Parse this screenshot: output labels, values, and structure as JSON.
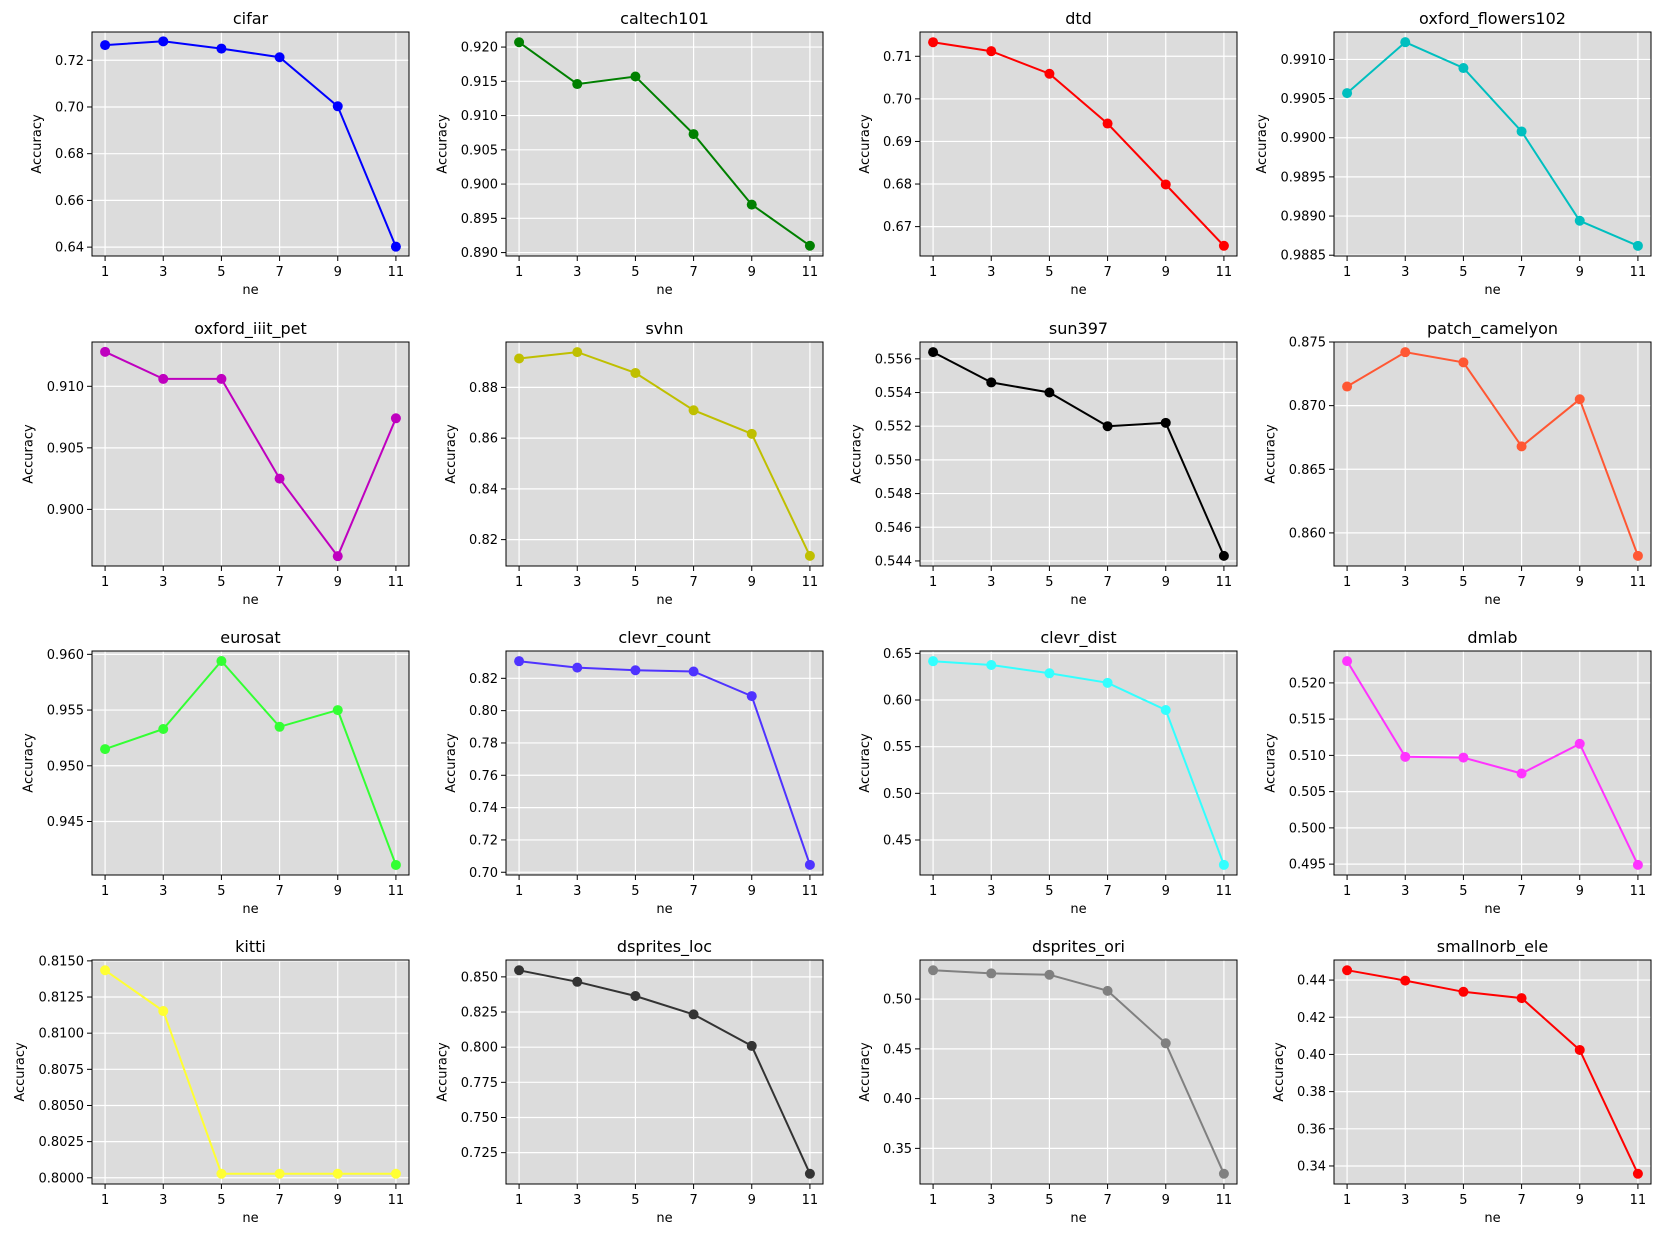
{
  "chart_data": [
    {
      "type": "line",
      "title": "cifar",
      "xlabel": "ne",
      "ylabel": "Accuracy",
      "color": "#0000ff",
      "x": [
        1,
        3,
        5,
        7,
        9,
        11
      ],
      "y": [
        0.7265,
        0.7281,
        0.725,
        0.7213,
        0.7003,
        0.6402
      ],
      "ylim": [
        0.6362,
        0.7321
      ],
      "yticks": [
        0.64,
        0.66,
        0.68,
        0.7,
        0.72
      ],
      "ytick_labels": [
        "0.64",
        "0.66",
        "0.68",
        "0.70",
        "0.72"
      ],
      "grid": true
    },
    {
      "type": "line",
      "title": "caltech101",
      "xlabel": "ne",
      "ylabel": "Accuracy",
      "color": "#008000",
      "x": [
        1,
        3,
        5,
        7,
        9,
        11
      ],
      "y": [
        0.9207,
        0.9146,
        0.9157,
        0.9073,
        0.897,
        0.891
      ],
      "ylim": [
        0.8895,
        0.9222
      ],
      "yticks": [
        0.89,
        0.895,
        0.9,
        0.905,
        0.91,
        0.915,
        0.92
      ],
      "ytick_labels": [
        "0.890",
        "0.895",
        "0.900",
        "0.905",
        "0.910",
        "0.915",
        "0.920"
      ],
      "grid": true
    },
    {
      "type": "line",
      "title": "dtd",
      "xlabel": "ne",
      "ylabel": "Accuracy",
      "color": "#ff0000",
      "x": [
        1,
        3,
        5,
        7,
        9,
        11
      ],
      "y": [
        0.7133,
        0.7112,
        0.7059,
        0.6942,
        0.6799,
        0.6655
      ],
      "ylim": [
        0.6631,
        0.7157
      ],
      "yticks": [
        0.67,
        0.68,
        0.69,
        0.7,
        0.71
      ],
      "ytick_labels": [
        "0.67",
        "0.68",
        "0.69",
        "0.70",
        "0.71"
      ],
      "grid": true
    },
    {
      "type": "line",
      "title": "oxford_flowers102",
      "xlabel": "ne",
      "ylabel": "Accuracy",
      "color": "#00bfbf",
      "x": [
        1,
        3,
        5,
        7,
        9,
        11
      ],
      "y": [
        0.99057,
        0.99122,
        0.99089,
        0.99008,
        0.98894,
        0.98862
      ],
      "ylim": [
        0.98849,
        0.99135
      ],
      "yticks": [
        0.9885,
        0.989,
        0.9895,
        0.99,
        0.9905,
        0.991
      ],
      "ytick_labels": [
        "0.9885",
        "0.9890",
        "0.9895",
        "0.9900",
        "0.9905",
        "0.9910"
      ],
      "grid": true
    },
    {
      "type": "line",
      "title": "oxford_iiit_pet",
      "xlabel": "ne",
      "ylabel": "Accuracy",
      "color": "#bf00bf",
      "x": [
        1,
        3,
        5,
        7,
        9,
        11
      ],
      "y": [
        0.9128,
        0.9106,
        0.9106,
        0.9025,
        0.8962,
        0.9074
      ],
      "ylim": [
        0.8954,
        0.9136
      ],
      "yticks": [
        0.9,
        0.905,
        0.91
      ],
      "ytick_labels": [
        "0.900",
        "0.905",
        "0.910"
      ],
      "grid": true
    },
    {
      "type": "line",
      "title": "svhn",
      "xlabel": "ne",
      "ylabel": "Accuracy",
      "color": "#bfbf00",
      "x": [
        1,
        3,
        5,
        7,
        9,
        11
      ],
      "y": [
        0.8914,
        0.8939,
        0.8857,
        0.871,
        0.8617,
        0.8136
      ],
      "ylim": [
        0.8096,
        0.8979
      ],
      "yticks": [
        0.82,
        0.84,
        0.86,
        0.88
      ],
      "ytick_labels": [
        "0.82",
        "0.84",
        "0.86",
        "0.88"
      ],
      "grid": true
    },
    {
      "type": "line",
      "title": "sun397",
      "xlabel": "ne",
      "ylabel": "Accuracy",
      "color": "#000000",
      "x": [
        1,
        3,
        5,
        7,
        9,
        11
      ],
      "y": [
        0.5564,
        0.5546,
        0.554,
        0.552,
        0.5522,
        0.5443
      ],
      "ylim": [
        0.5437,
        0.557
      ],
      "yticks": [
        0.544,
        0.546,
        0.548,
        0.55,
        0.552,
        0.554,
        0.556
      ],
      "ytick_labels": [
        "0.544",
        "0.546",
        "0.548",
        "0.550",
        "0.552",
        "0.554",
        "0.556"
      ],
      "grid": true
    },
    {
      "type": "line",
      "title": "patch_camelyon",
      "xlabel": "ne",
      "ylabel": "Accuracy",
      "color": "#ff5733",
      "x": [
        1,
        3,
        5,
        7,
        9,
        11
      ],
      "y": [
        0.8715,
        0.8742,
        0.8734,
        0.8668,
        0.8705,
        0.8582
      ],
      "ylim": [
        0.8574,
        0.875
      ],
      "yticks": [
        0.86,
        0.865,
        0.87,
        0.875
      ],
      "ytick_labels": [
        "0.860",
        "0.865",
        "0.870",
        "0.875"
      ],
      "grid": true
    },
    {
      "type": "line",
      "title": "eurosat",
      "xlabel": "ne",
      "ylabel": "Accuracy",
      "color": "#33ff33",
      "x": [
        1,
        3,
        5,
        7,
        9,
        11
      ],
      "y": [
        0.9515,
        0.9533,
        0.9594,
        0.9535,
        0.955,
        0.9411
      ],
      "ylim": [
        0.9402,
        0.9603
      ],
      "yticks": [
        0.945,
        0.95,
        0.955,
        0.96
      ],
      "ytick_labels": [
        "0.945",
        "0.950",
        "0.955",
        "0.960"
      ],
      "grid": true
    },
    {
      "type": "line",
      "title": "clevr_count",
      "xlabel": "ne",
      "ylabel": "Accuracy",
      "color": "#4f33ff",
      "x": [
        1,
        3,
        5,
        7,
        9,
        11
      ],
      "y": [
        0.8306,
        0.8266,
        0.825,
        0.8242,
        0.809,
        0.7046
      ],
      "ylim": [
        0.6983,
        0.8369
      ],
      "yticks": [
        0.7,
        0.72,
        0.74,
        0.76,
        0.78,
        0.8,
        0.82
      ],
      "ytick_labels": [
        "0.70",
        "0.72",
        "0.74",
        "0.76",
        "0.78",
        "0.80",
        "0.82"
      ],
      "grid": true
    },
    {
      "type": "line",
      "title": "clevr_dist",
      "xlabel": "ne",
      "ylabel": "Accuracy",
      "color": "#33ffff",
      "x": [
        1,
        3,
        5,
        7,
        9,
        11
      ],
      "y": [
        0.6416,
        0.6375,
        0.6286,
        0.6184,
        0.5893,
        0.4234
      ],
      "ylim": [
        0.4125,
        0.6525
      ],
      "yticks": [
        0.45,
        0.5,
        0.55,
        0.6,
        0.65
      ],
      "ytick_labels": [
        "0.45",
        "0.50",
        "0.55",
        "0.60",
        "0.65"
      ],
      "grid": true
    },
    {
      "type": "line",
      "title": "dmlab",
      "xlabel": "ne",
      "ylabel": "Accuracy",
      "color": "#ff33ff",
      "x": [
        1,
        3,
        5,
        7,
        9,
        11
      ],
      "y": [
        0.523,
        0.5098,
        0.5097,
        0.5075,
        0.5116,
        0.4949
      ],
      "ylim": [
        0.4935,
        0.5244
      ],
      "yticks": [
        0.495,
        0.5,
        0.505,
        0.51,
        0.515,
        0.52
      ],
      "ytick_labels": [
        "0.495",
        "0.500",
        "0.505",
        "0.510",
        "0.515",
        "0.520"
      ],
      "grid": true
    },
    {
      "type": "line",
      "title": "kitti",
      "xlabel": "ne",
      "ylabel": "Accuracy",
      "color": "#ffff33",
      "x": [
        1,
        3,
        5,
        7,
        9,
        11
      ],
      "y": [
        0.81435,
        0.81153,
        0.80028,
        0.80028,
        0.80028,
        0.80028
      ],
      "ylim": [
        0.79957,
        0.81506
      ],
      "yticks": [
        0.8,
        0.8025,
        0.805,
        0.8075,
        0.81,
        0.8125,
        0.815
      ],
      "ytick_labels": [
        "0.8000",
        "0.8025",
        "0.8050",
        "0.8075",
        "0.8100",
        "0.8125",
        "0.8150"
      ],
      "grid": true
    },
    {
      "type": "line",
      "title": "dsprites_loc",
      "xlabel": "ne",
      "ylabel": "Accuracy",
      "color": "#333333",
      "x": [
        1,
        3,
        5,
        7,
        9,
        11
      ],
      "y": [
        0.8547,
        0.8465,
        0.8364,
        0.8233,
        0.8009,
        0.71
      ],
      "ylim": [
        0.7027,
        0.862
      ],
      "yticks": [
        0.725,
        0.75,
        0.775,
        0.8,
        0.825,
        0.85
      ],
      "ytick_labels": [
        "0.725",
        "0.750",
        "0.775",
        "0.800",
        "0.825",
        "0.850"
      ],
      "grid": true
    },
    {
      "type": "line",
      "title": "dsprites_ori",
      "xlabel": "ne",
      "ylabel": "Accuracy",
      "color": "#808080",
      "x": [
        1,
        3,
        5,
        7,
        9,
        11
      ],
      "y": [
        0.529,
        0.5258,
        0.5245,
        0.5083,
        0.4556,
        0.3245
      ],
      "ylim": [
        0.3142,
        0.5393
      ],
      "yticks": [
        0.35,
        0.4,
        0.45,
        0.5
      ],
      "ytick_labels": [
        "0.35",
        "0.40",
        "0.45",
        "0.50"
      ],
      "grid": true
    },
    {
      "type": "line",
      "title": "smallnorb_ele",
      "xlabel": "ne",
      "ylabel": "Accuracy",
      "color": "#ff0000",
      "x": [
        1,
        3,
        5,
        7,
        9,
        11
      ],
      "y": [
        0.4453,
        0.4397,
        0.4337,
        0.4303,
        0.4024,
        0.3358
      ],
      "ylim": [
        0.3303,
        0.4508
      ],
      "yticks": [
        0.34,
        0.36,
        0.38,
        0.4,
        0.42,
        0.44
      ],
      "ytick_labels": [
        "0.34",
        "0.36",
        "0.38",
        "0.40",
        "0.42",
        "0.44"
      ],
      "grid": true
    }
  ],
  "xticks": [
    1,
    3,
    5,
    7,
    9,
    11
  ],
  "xtick_labels": [
    "1",
    "3",
    "5",
    "7",
    "9",
    "11"
  ]
}
